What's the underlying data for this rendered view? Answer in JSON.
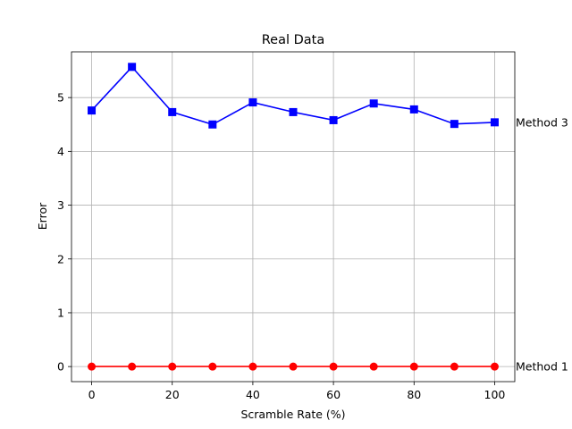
{
  "chart_data": {
    "type": "line",
    "title": "Real Data",
    "xlabel": "Scramble Rate (%)",
    "ylabel": "Error",
    "xlim": [
      -5,
      105
    ],
    "ylim": [
      -0.28,
      5.85
    ],
    "xticks": [
      0,
      20,
      40,
      60,
      80,
      100
    ],
    "yticks": [
      0,
      1,
      2,
      3,
      4,
      5
    ],
    "grid": true,
    "x": [
      0,
      10,
      20,
      30,
      40,
      50,
      60,
      70,
      80,
      90,
      100
    ],
    "series": [
      {
        "name": "Method 3",
        "color": "#0000ff",
        "marker": "square",
        "values": [
          4.76,
          5.57,
          4.73,
          4.5,
          4.91,
          4.73,
          4.58,
          4.89,
          4.78,
          4.51,
          4.54
        ]
      },
      {
        "name": "Method 1",
        "color": "#ff0000",
        "marker": "circle",
        "values": [
          0,
          0,
          0,
          0,
          0,
          0,
          0,
          0,
          0,
          0,
          0
        ]
      }
    ]
  }
}
